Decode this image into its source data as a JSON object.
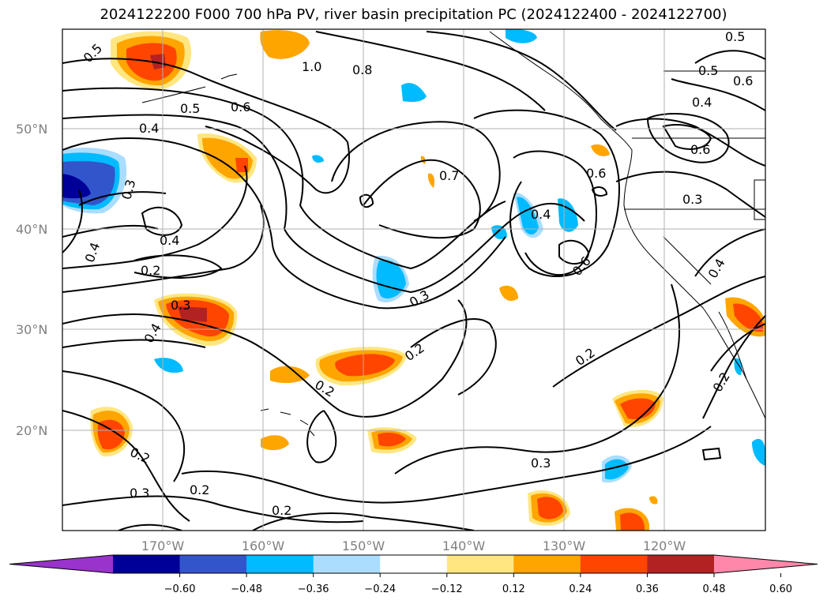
{
  "title": "2024122200 F000 700 hPa PV, river basin precipitation PC (2024122400 - 2024122700)",
  "lat_labels": [
    "50°N",
    "40°N",
    "30°N",
    "20°N"
  ],
  "lon_labels": [
    "170°W",
    "160°W",
    "150°W",
    "140°W",
    "130°W",
    "120°W"
  ],
  "colorbar": {
    "ticks": [
      "−0.60",
      "−0.48",
      "−0.36",
      "−0.24",
      "−0.12",
      "0.12",
      "0.24",
      "0.36",
      "0.48",
      "0.60"
    ],
    "colors": [
      "#9933cc",
      "#000099",
      "#3355cc",
      "#00bbff",
      "#aaddff",
      "#ffffff",
      "#ffe680",
      "#ffa500",
      "#ff4500",
      "#b22222",
      "#ff88aa"
    ]
  },
  "contour_labels": [
    "0.5",
    "1.0",
    "0.8",
    "0.5",
    "0.6",
    "0.4",
    "0.3",
    "0.7",
    "0.4",
    "0.6",
    "0.5",
    "0.4",
    "0.6",
    "0.5",
    "0.6",
    "0.3",
    "0.4",
    "0.4",
    "0.2",
    "0.3",
    "0.3",
    "0.4",
    "0.2",
    "0.2",
    "0.2",
    "0.3",
    "0.2",
    "0.3",
    "0.2",
    "0.2",
    "0.6",
    "0.4",
    "0.2"
  ]
}
